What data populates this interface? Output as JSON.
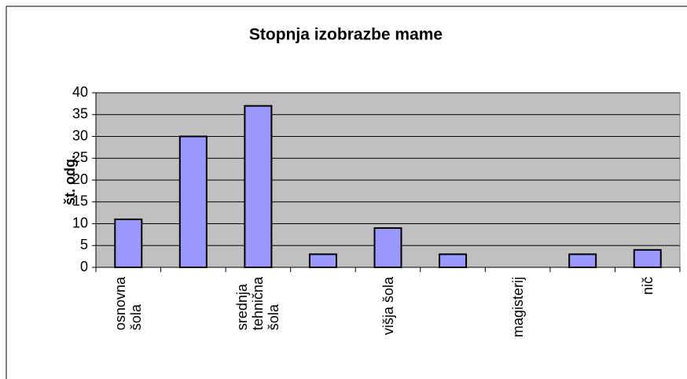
{
  "chart_data": {
    "type": "bar",
    "title": "Stopnja izobrazbe mame",
    "y_label": "št. odg.",
    "categories": [
      "osnovna\nšola",
      null,
      "srednja\ntehnična\nšola",
      null,
      "višja šola",
      null,
      "magisterij",
      null,
      "nič"
    ],
    "values": [
      11,
      30,
      37,
      3,
      9,
      3,
      0,
      3,
      4
    ],
    "color": "#9999ff",
    "ylim": [
      0,
      40
    ],
    "yticks": [
      0,
      5,
      10,
      15,
      20,
      25,
      30,
      35,
      40
    ],
    "grid": true
  }
}
